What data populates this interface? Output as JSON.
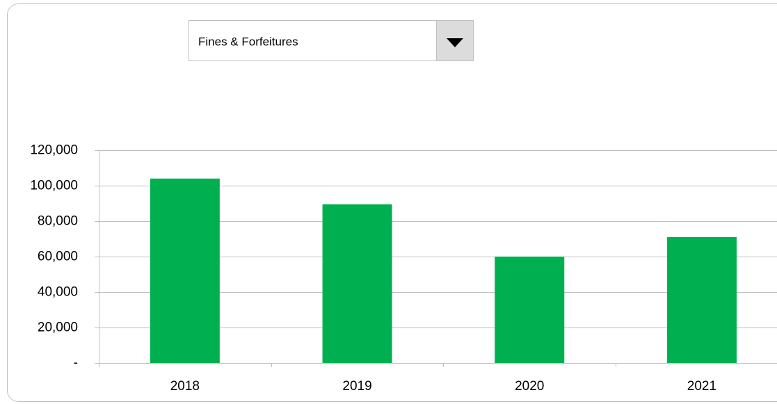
{
  "dropdown": {
    "selected": "Fines & Forfeitures"
  },
  "chart_data": {
    "type": "bar",
    "categories": [
      "2018",
      "2019",
      "2020",
      "2021"
    ],
    "values": [
      104000,
      89500,
      60000,
      71000
    ],
    "color": "#00b050",
    "ylim": [
      0,
      120000
    ],
    "yticks": [
      {
        "value": 0,
        "label": "-"
      },
      {
        "value": 20000,
        "label": "20,000"
      },
      {
        "value": 40000,
        "label": "40,000"
      },
      {
        "value": 60000,
        "label": "60,000"
      },
      {
        "value": 80000,
        "label": "80,000"
      },
      {
        "value": 100000,
        "label": "100,000"
      },
      {
        "value": 120000,
        "label": "120,000"
      }
    ],
    "grid": true
  }
}
